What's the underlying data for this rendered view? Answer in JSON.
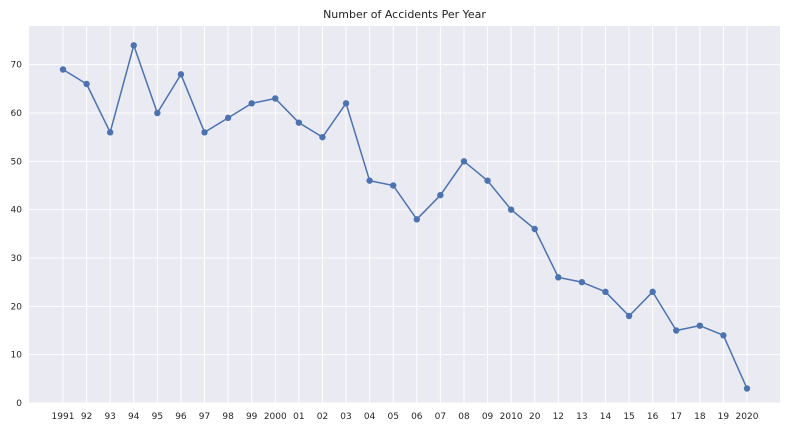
{
  "chart_data": {
    "type": "line",
    "title": "Number of Accidents Per Year",
    "xlabel": "",
    "ylabel": "",
    "categories": [
      "1991",
      "92",
      "93",
      "94",
      "95",
      "96",
      "97",
      "98",
      "99",
      "2000",
      "01",
      "02",
      "03",
      "04",
      "05",
      "06",
      "07",
      "08",
      "09",
      "2010",
      "20",
      "12",
      "13",
      "14",
      "15",
      "16",
      "17",
      "18",
      "19",
      "2020"
    ],
    "series": [
      {
        "values": [
          69,
          66,
          56,
          74,
          60,
          68,
          56,
          59,
          62,
          63,
          58,
          55,
          62,
          46,
          45,
          38,
          43,
          50,
          46,
          40,
          36,
          26,
          25,
          23,
          18,
          23,
          15,
          16,
          14,
          3
        ]
      }
    ],
    "ylim": [
      0,
      78
    ],
    "yticks": [
      0,
      10,
      20,
      30,
      40,
      50,
      60,
      70
    ],
    "grid": true,
    "legend": "none",
    "colors": {
      "line": "#4c72b0",
      "plot_background": "#eaeaf2",
      "grid": "#ffffff"
    }
  }
}
